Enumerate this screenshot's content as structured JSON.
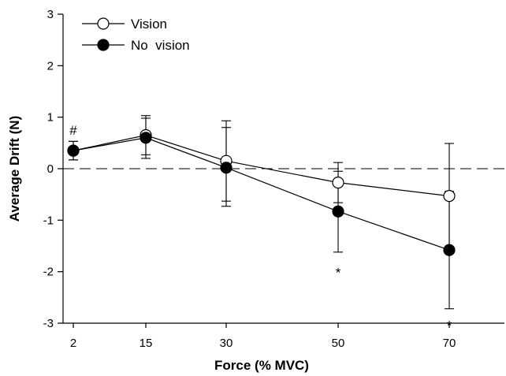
{
  "chart_data": {
    "type": "line",
    "title": "",
    "xlabel": "Force (% MVC)",
    "ylabel": "Average Drift (N)",
    "categories": [
      "2",
      "15",
      "30",
      "50",
      "70"
    ],
    "yticks": [
      "3",
      "2",
      "1",
      "0",
      "-1",
      "-2",
      "-3"
    ],
    "ylim": [
      -3,
      3
    ],
    "grid": false,
    "legend_position": "top-left",
    "reference_line": {
      "y": 0,
      "style": "dashed"
    },
    "series": [
      {
        "name": "Vision",
        "marker": "open-circle",
        "values": [
          0.35,
          0.65,
          0.15,
          -0.27,
          -0.53
        ],
        "error_upper": [
          0.53,
          1.03,
          0.93,
          0.12,
          0.49
        ],
        "error_lower": [
          0.17,
          0.27,
          -0.63,
          -0.66,
          -1.55
        ]
      },
      {
        "name": "No  vision",
        "marker": "filled-circle",
        "values": [
          0.35,
          0.6,
          0.02,
          -0.83,
          -1.58
        ],
        "error_upper": [
          0.53,
          0.98,
          0.8,
          -0.05,
          -0.44
        ],
        "error_lower": [
          0.17,
          0.2,
          -0.73,
          -1.62,
          -2.72
        ]
      }
    ],
    "annotations": [
      {
        "text": "#",
        "category": "2",
        "y": 0.75
      },
      {
        "text": "*",
        "category": "50",
        "y": -1.92
      },
      {
        "text": "*",
        "category": "70",
        "y": -2.95
      }
    ],
    "colors": {
      "line": "#000000",
      "open_fill": "#ffffff",
      "filled_fill": "#000000"
    }
  }
}
